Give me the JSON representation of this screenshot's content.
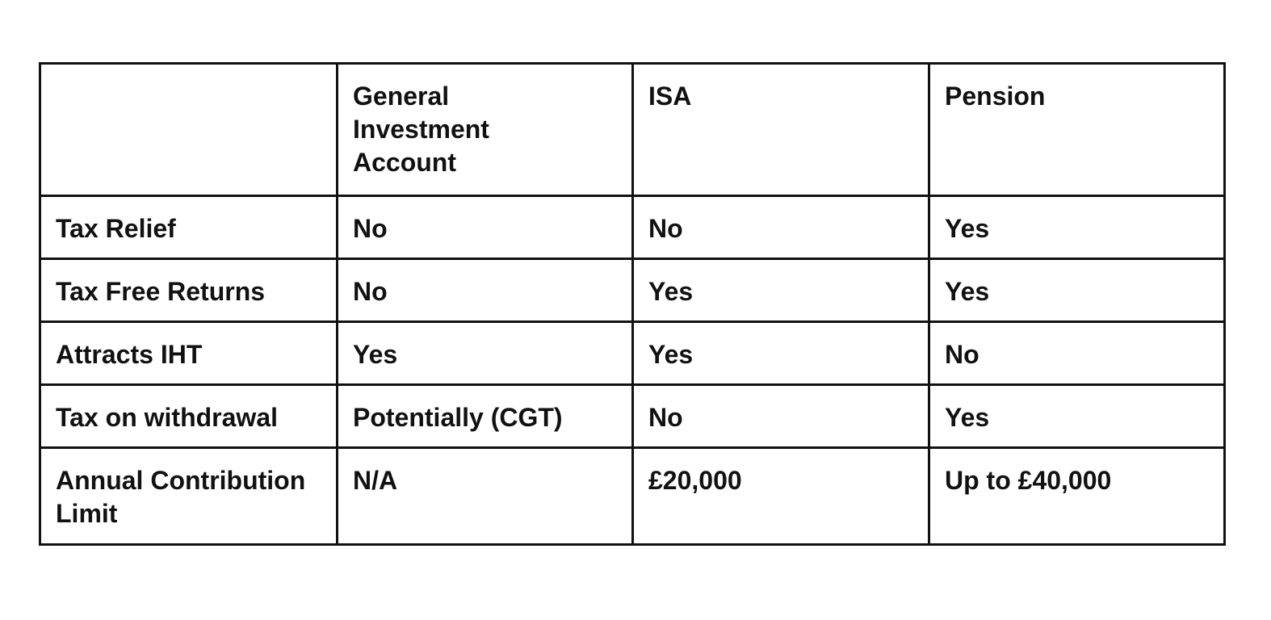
{
  "table": {
    "header": [
      "",
      "General Investment Account",
      "ISA",
      "Pension"
    ],
    "rows": [
      [
        "Tax Relief",
        "No",
        "No",
        "Yes"
      ],
      [
        "Tax Free Returns",
        "No",
        "Yes",
        "Yes"
      ],
      [
        "Attracts IHT",
        "Yes",
        "Yes",
        "No"
      ],
      [
        "Tax on withdrawal",
        "Potentially (CGT)",
        "No",
        "Yes"
      ],
      [
        "Annual Contribution Limit",
        "N/A",
        "£20,000",
        "Up to £40,000"
      ]
    ]
  }
}
